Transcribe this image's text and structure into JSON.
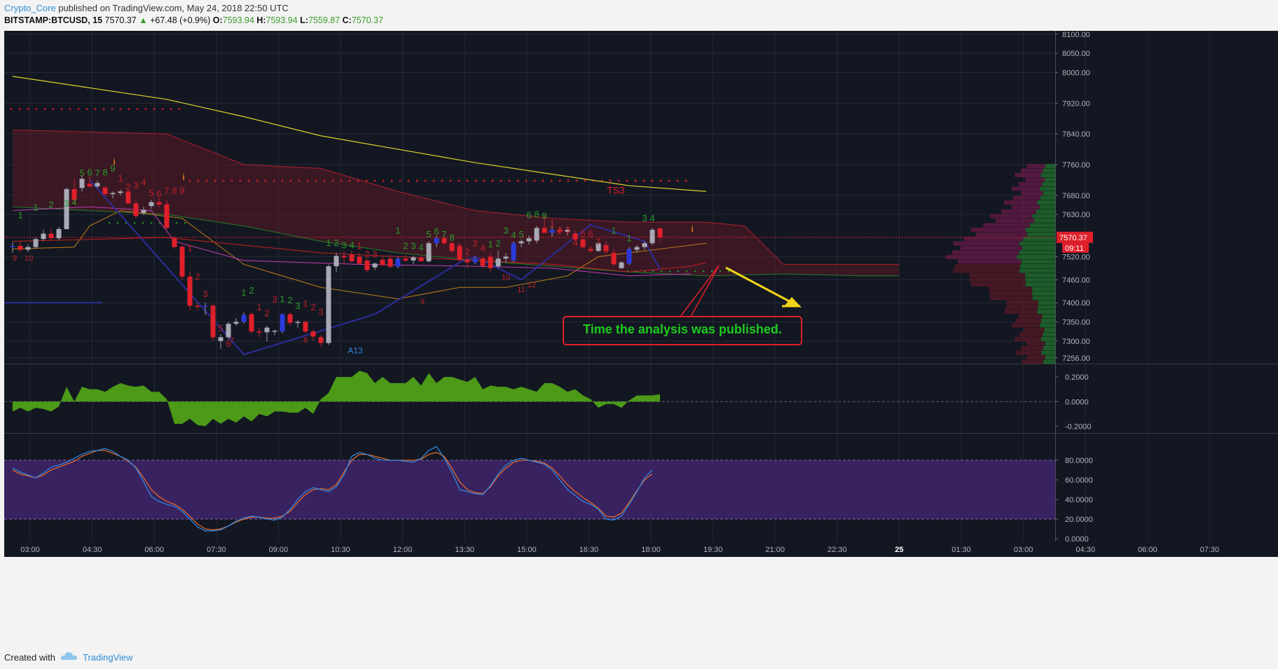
{
  "header": {
    "author": "Crypto_Core",
    "published_text": "published on TradingView.com, May 24, 2018 22:50 UTC",
    "symbol": "BITSTAMP:BTCUSD, 15",
    "last": "7570.37",
    "change": "+67.48 (+0.9%)",
    "o_label": "O:",
    "o_value": "7593.94",
    "h_label": "H:",
    "h_value": "7593.94",
    "l_label": "L:",
    "l_value": "7559.87",
    "c_label": "C:",
    "c_value": "7570.37"
  },
  "footer": {
    "created_label": "Created with",
    "brand": "TradingView"
  },
  "colors": {
    "background": "#131722",
    "bull": "#1ec31e",
    "bear": "#e0202b",
    "ma_yellow": "#d9d22a",
    "ma_blue": "#2c2c9a",
    "pink": "#c33fb0",
    "orange": "#c17e17",
    "red_line": "#c82020",
    "annotation_green": "#1ecb1e",
    "annotation_border": "#e0202b",
    "arrow": "#f2d318",
    "histogram": "#4c9a18",
    "stoch_k": "#2f86e0",
    "stoch_d": "#e06a2a",
    "stoch_band": "#3e2467"
  },
  "chart_data": {
    "type": "candlestick",
    "symbol": "BITSTAMP:BTCUSD",
    "timeframe": "15",
    "x_tick_labels": [
      "03:00",
      "04:30",
      "06:00",
      "07:30",
      "09:00",
      "10:30",
      "12:00",
      "13:30",
      "15:00",
      "16:30",
      "18:00",
      "19:30",
      "21:00",
      "22:30",
      "25",
      "01:30",
      "03:00",
      "04:30",
      "06:00",
      "07:30"
    ],
    "price_axis": {
      "ticks": [
        "8100.00",
        "8050.00",
        "8000.00",
        "7920.00",
        "7840.00",
        "7760.00",
        "7680.00",
        "7630.00",
        "7570.37",
        "7520.00",
        "7460.00",
        "7400.00",
        "7350.00",
        "7300.00",
        "7256.00"
      ],
      "range": [
        7245,
        8105
      ],
      "last_price_label": "7570.37",
      "countdown": "09:11"
    },
    "candles": [
      {
        "o": 7545,
        "h": 7558,
        "l": 7530,
        "c": 7548
      },
      {
        "o": 7548,
        "h": 7560,
        "l": 7530,
        "c": 7538
      },
      {
        "o": 7538,
        "h": 7552,
        "l": 7532,
        "c": 7545
      },
      {
        "o": 7545,
        "h": 7570,
        "l": 7540,
        "c": 7566
      },
      {
        "o": 7566,
        "h": 7590,
        "l": 7560,
        "c": 7580
      },
      {
        "o": 7580,
        "h": 7595,
        "l": 7565,
        "c": 7568
      },
      {
        "o": 7568,
        "h": 7598,
        "l": 7562,
        "c": 7592
      },
      {
        "o": 7592,
        "h": 7700,
        "l": 7590,
        "c": 7696
      },
      {
        "o": 7696,
        "h": 7725,
        "l": 7660,
        "c": 7668
      },
      {
        "o": 7699,
        "h": 7730,
        "l": 7690,
        "c": 7723
      },
      {
        "o": 7710,
        "h": 7730,
        "l": 7700,
        "c": 7703
      },
      {
        "o": 7703,
        "h": 7718,
        "l": 7698,
        "c": 7712
      },
      {
        "o": 7700,
        "h": 7705,
        "l": 7680,
        "c": 7683
      },
      {
        "o": 7683,
        "h": 7690,
        "l": 7672,
        "c": 7686
      },
      {
        "o": 7686,
        "h": 7695,
        "l": 7680,
        "c": 7690
      },
      {
        "o": 7690,
        "h": 7695,
        "l": 7655,
        "c": 7659
      },
      {
        "o": 7659,
        "h": 7668,
        "l": 7620,
        "c": 7626
      },
      {
        "o": 7634,
        "h": 7650,
        "l": 7628,
        "c": 7642
      },
      {
        "o": 7652,
        "h": 7668,
        "l": 7645,
        "c": 7662
      },
      {
        "o": 7662,
        "h": 7672,
        "l": 7650,
        "c": 7656
      },
      {
        "o": 7656,
        "h": 7668,
        "l": 7590,
        "c": 7595
      },
      {
        "o": 7568,
        "h": 7572,
        "l": 7540,
        "c": 7545
      },
      {
        "o": 7546,
        "h": 7550,
        "l": 7460,
        "c": 7468
      },
      {
        "o": 7468,
        "h": 7482,
        "l": 7380,
        "c": 7392
      },
      {
        "o": 7392,
        "h": 7400,
        "l": 7380,
        "c": 7390
      },
      {
        "o": 7390,
        "h": 7400,
        "l": 7368,
        "c": 7392
      },
      {
        "o": 7392,
        "h": 7398,
        "l": 7300,
        "c": 7310
      },
      {
        "o": 7300,
        "h": 7318,
        "l": 7280,
        "c": 7310
      },
      {
        "o": 7310,
        "h": 7350,
        "l": 7305,
        "c": 7345
      },
      {
        "o": 7345,
        "h": 7360,
        "l": 7340,
        "c": 7350
      },
      {
        "o": 7350,
        "h": 7375,
        "l": 7345,
        "c": 7368
      },
      {
        "o": 7370,
        "h": 7375,
        "l": 7320,
        "c": 7325
      },
      {
        "o": 7325,
        "h": 7335,
        "l": 7310,
        "c": 7323
      },
      {
        "o": 7323,
        "h": 7340,
        "l": 7300,
        "c": 7335
      },
      {
        "o": 7325,
        "h": 7330,
        "l": 7315,
        "c": 7327
      },
      {
        "o": 7325,
        "h": 7372,
        "l": 7320,
        "c": 7370
      },
      {
        "o": 7370,
        "h": 7375,
        "l": 7340,
        "c": 7348
      },
      {
        "o": 7348,
        "h": 7355,
        "l": 7335,
        "c": 7350
      },
      {
        "o": 7350,
        "h": 7355,
        "l": 7320,
        "c": 7325
      },
      {
        "o": 7325,
        "h": 7330,
        "l": 7300,
        "c": 7312
      },
      {
        "o": 7310,
        "h": 7315,
        "l": 7285,
        "c": 7295
      },
      {
        "o": 7295,
        "h": 7500,
        "l": 7290,
        "c": 7495
      },
      {
        "o": 7495,
        "h": 7530,
        "l": 7480,
        "c": 7522
      },
      {
        "o": 7522,
        "h": 7535,
        "l": 7500,
        "c": 7518
      },
      {
        "o": 7525,
        "h": 7535,
        "l": 7505,
        "c": 7508
      },
      {
        "o": 7520,
        "h": 7530,
        "l": 7500,
        "c": 7502
      },
      {
        "o": 7510,
        "h": 7515,
        "l": 7480,
        "c": 7485
      },
      {
        "o": 7492,
        "h": 7505,
        "l": 7485,
        "c": 7502
      },
      {
        "o": 7512,
        "h": 7520,
        "l": 7495,
        "c": 7498
      },
      {
        "o": 7515,
        "h": 7525,
        "l": 7490,
        "c": 7494
      },
      {
        "o": 7494,
        "h": 7520,
        "l": 7490,
        "c": 7515
      },
      {
        "o": 7515,
        "h": 7525,
        "l": 7505,
        "c": 7510
      },
      {
        "o": 7510,
        "h": 7522,
        "l": 7500,
        "c": 7518
      },
      {
        "o": 7518,
        "h": 7525,
        "l": 7510,
        "c": 7508
      },
      {
        "o": 7508,
        "h": 7560,
        "l": 7505,
        "c": 7555
      },
      {
        "o": 7555,
        "h": 7575,
        "l": 7545,
        "c": 7568
      },
      {
        "o": 7568,
        "h": 7580,
        "l": 7550,
        "c": 7555
      },
      {
        "o": 7555,
        "h": 7560,
        "l": 7530,
        "c": 7535
      },
      {
        "o": 7548,
        "h": 7552,
        "l": 7508,
        "c": 7512
      },
      {
        "o": 7512,
        "h": 7520,
        "l": 7490,
        "c": 7505
      },
      {
        "o": 7505,
        "h": 7520,
        "l": 7500,
        "c": 7515
      },
      {
        "o": 7515,
        "h": 7520,
        "l": 7490,
        "c": 7496
      },
      {
        "o": 7520,
        "h": 7530,
        "l": 7480,
        "c": 7490
      },
      {
        "o": 7495,
        "h": 7535,
        "l": 7490,
        "c": 7515
      },
      {
        "o": 7515,
        "h": 7530,
        "l": 7505,
        "c": 7520
      },
      {
        "o": 7510,
        "h": 7560,
        "l": 7505,
        "c": 7555
      },
      {
        "o": 7555,
        "h": 7565,
        "l": 7545,
        "c": 7560
      },
      {
        "o": 7560,
        "h": 7575,
        "l": 7552,
        "c": 7568
      },
      {
        "o": 7562,
        "h": 7600,
        "l": 7555,
        "c": 7595
      },
      {
        "o": 7595,
        "h": 7630,
        "l": 7585,
        "c": 7582
      },
      {
        "o": 7582,
        "h": 7600,
        "l": 7572,
        "c": 7590
      },
      {
        "o": 7590,
        "h": 7598,
        "l": 7578,
        "c": 7585
      },
      {
        "o": 7585,
        "h": 7595,
        "l": 7575,
        "c": 7590
      },
      {
        "o": 7580,
        "h": 7588,
        "l": 7560,
        "c": 7565
      },
      {
        "o": 7565,
        "h": 7570,
        "l": 7540,
        "c": 7545
      },
      {
        "o": 7540,
        "h": 7548,
        "l": 7530,
        "c": 7535
      },
      {
        "o": 7535,
        "h": 7560,
        "l": 7532,
        "c": 7555
      },
      {
        "o": 7550,
        "h": 7560,
        "l": 7530,
        "c": 7535
      },
      {
        "o": 7530,
        "h": 7540,
        "l": 7495,
        "c": 7500
      },
      {
        "o": 7490,
        "h": 7508,
        "l": 7488,
        "c": 7505
      },
      {
        "o": 7502,
        "h": 7545,
        "l": 7498,
        "c": 7540
      },
      {
        "o": 7538,
        "h": 7550,
        "l": 7530,
        "c": 7545
      },
      {
        "o": 7545,
        "h": 7560,
        "l": 7538,
        "c": 7555
      },
      {
        "o": 7555,
        "h": 7595,
        "l": 7550,
        "c": 7590
      },
      {
        "o": 7594,
        "h": 7594,
        "l": 7560,
        "c": 7570
      }
    ],
    "overlays": {
      "ma_long_yellow": [
        [
          0,
          7990
        ],
        [
          10,
          7960
        ],
        [
          20,
          7930
        ],
        [
          30,
          7885
        ],
        [
          40,
          7835
        ],
        [
          50,
          7800
        ],
        [
          60,
          7765
        ],
        [
          70,
          7735
        ],
        [
          80,
          7705
        ],
        [
          90,
          7690
        ]
      ],
      "ma_blue_zigzag": [
        [
          10,
          7720
        ],
        [
          30,
          7265
        ],
        [
          47,
          7370
        ],
        [
          58,
          7505
        ],
        [
          60,
          7520
        ],
        [
          66,
          7460
        ],
        [
          75,
          7603
        ],
        [
          82,
          7560
        ],
        [
          84,
          7487
        ]
      ],
      "cloud_upper": [
        [
          0,
          7850
        ],
        [
          20,
          7840
        ],
        [
          30,
          7760
        ],
        [
          40,
          7750
        ],
        [
          50,
          7690
        ],
        [
          60,
          7640
        ],
        [
          70,
          7620
        ],
        [
          80,
          7610
        ],
        [
          90,
          7610
        ],
        [
          95,
          7600
        ],
        [
          100,
          7500
        ],
        [
          108,
          7500
        ],
        [
          115,
          7500
        ]
      ],
      "cloud_lower": [
        [
          0,
          7650
        ],
        [
          20,
          7630
        ],
        [
          30,
          7600
        ],
        [
          40,
          7560
        ],
        [
          50,
          7530
        ],
        [
          60,
          7510
        ],
        [
          70,
          7495
        ],
        [
          80,
          7480
        ],
        [
          90,
          7470
        ],
        [
          100,
          7475
        ],
        [
          110,
          7470
        ],
        [
          115,
          7470
        ]
      ],
      "dotted_upper_red": 7718,
      "dotted_top_red": 7905
    },
    "td_sequential_labels": [
      "1",
      "2",
      "3",
      "4",
      "5",
      "6",
      "7",
      "8",
      "9",
      "TS3",
      "A13",
      "10",
      "11",
      "12"
    ],
    "annotations": [
      {
        "text": "Time the analysis was published.",
        "arrow": "yellow arrow pointing down-right from price to 7480"
      }
    ],
    "oscillator": {
      "type": "area",
      "ticks": [
        "0.2000",
        "0.0000",
        "-0.2000"
      ],
      "range": [
        -0.22,
        0.28
      ],
      "values": [
        -0.08,
        -0.05,
        -0.08,
        -0.05,
        -0.06,
        -0.08,
        -0.04,
        0.12,
        0.0,
        0.12,
        0.1,
        0.1,
        0.08,
        0.12,
        0.15,
        0.13,
        0.12,
        0.13,
        0.08,
        0.08,
        0.02,
        -0.18,
        -0.18,
        -0.14,
        -0.19,
        -0.2,
        -0.14,
        -0.18,
        -0.14,
        -0.17,
        -0.12,
        -0.16,
        -0.1,
        -0.12,
        -0.08,
        -0.08,
        -0.09,
        -0.09,
        -0.05,
        -0.1,
        0.02,
        0.07,
        0.2,
        0.2,
        0.2,
        0.25,
        0.23,
        0.15,
        0.2,
        0.15,
        0.15,
        0.15,
        0.2,
        0.13,
        0.23,
        0.15,
        0.2,
        0.2,
        0.18,
        0.16,
        0.2,
        0.1,
        0.13,
        0.12,
        0.12,
        0.1,
        0.12,
        0.1,
        0.08,
        0.15,
        0.15,
        0.12,
        0.08,
        0.1,
        0.05,
        0.02,
        -0.05,
        -0.02,
        -0.02,
        -0.05,
        0.01,
        0.05,
        0.05,
        0.05,
        0.06
      ]
    },
    "stochastic": {
      "ticks": [
        "80.0000",
        "60.0000",
        "40.0000",
        "20.0000",
        "0.0000"
      ],
      "range": [
        0,
        100
      ],
      "band": [
        20,
        80
      ],
      "k": [
        72,
        68,
        65,
        62,
        67,
        73,
        75,
        78,
        82,
        86,
        89,
        90,
        92,
        89,
        84,
        80,
        72,
        58,
        43,
        38,
        35,
        33,
        28,
        20,
        12,
        8,
        8,
        9,
        13,
        18,
        21,
        23,
        22,
        20,
        19,
        22,
        30,
        40,
        48,
        52,
        50,
        48,
        53,
        65,
        84,
        88,
        86,
        82,
        80,
        80,
        80,
        79,
        78,
        82,
        90,
        94,
        82,
        68,
        50,
        48,
        46,
        45,
        54,
        66,
        75,
        80,
        82,
        80,
        78,
        76,
        70,
        60,
        50,
        44,
        38,
        35,
        30,
        20,
        19,
        23,
        35,
        48,
        62,
        70
      ],
      "d": [
        70,
        66,
        64,
        62,
        65,
        70,
        73,
        76,
        79,
        84,
        87,
        90,
        90,
        87,
        84,
        79,
        73,
        62,
        50,
        43,
        38,
        35,
        30,
        23,
        15,
        10,
        9,
        10,
        13,
        17,
        20,
        22,
        22,
        21,
        21,
        23,
        28,
        37,
        45,
        50,
        51,
        50,
        55,
        68,
        80,
        86,
        86,
        84,
        82,
        80,
        80,
        80,
        80,
        81,
        86,
        88,
        84,
        72,
        58,
        50,
        47,
        46,
        53,
        64,
        72,
        78,
        80,
        80,
        79,
        77,
        72,
        64,
        55,
        48,
        42,
        37,
        31,
        23,
        22,
        26,
        37,
        49,
        60,
        66
      ]
    }
  }
}
